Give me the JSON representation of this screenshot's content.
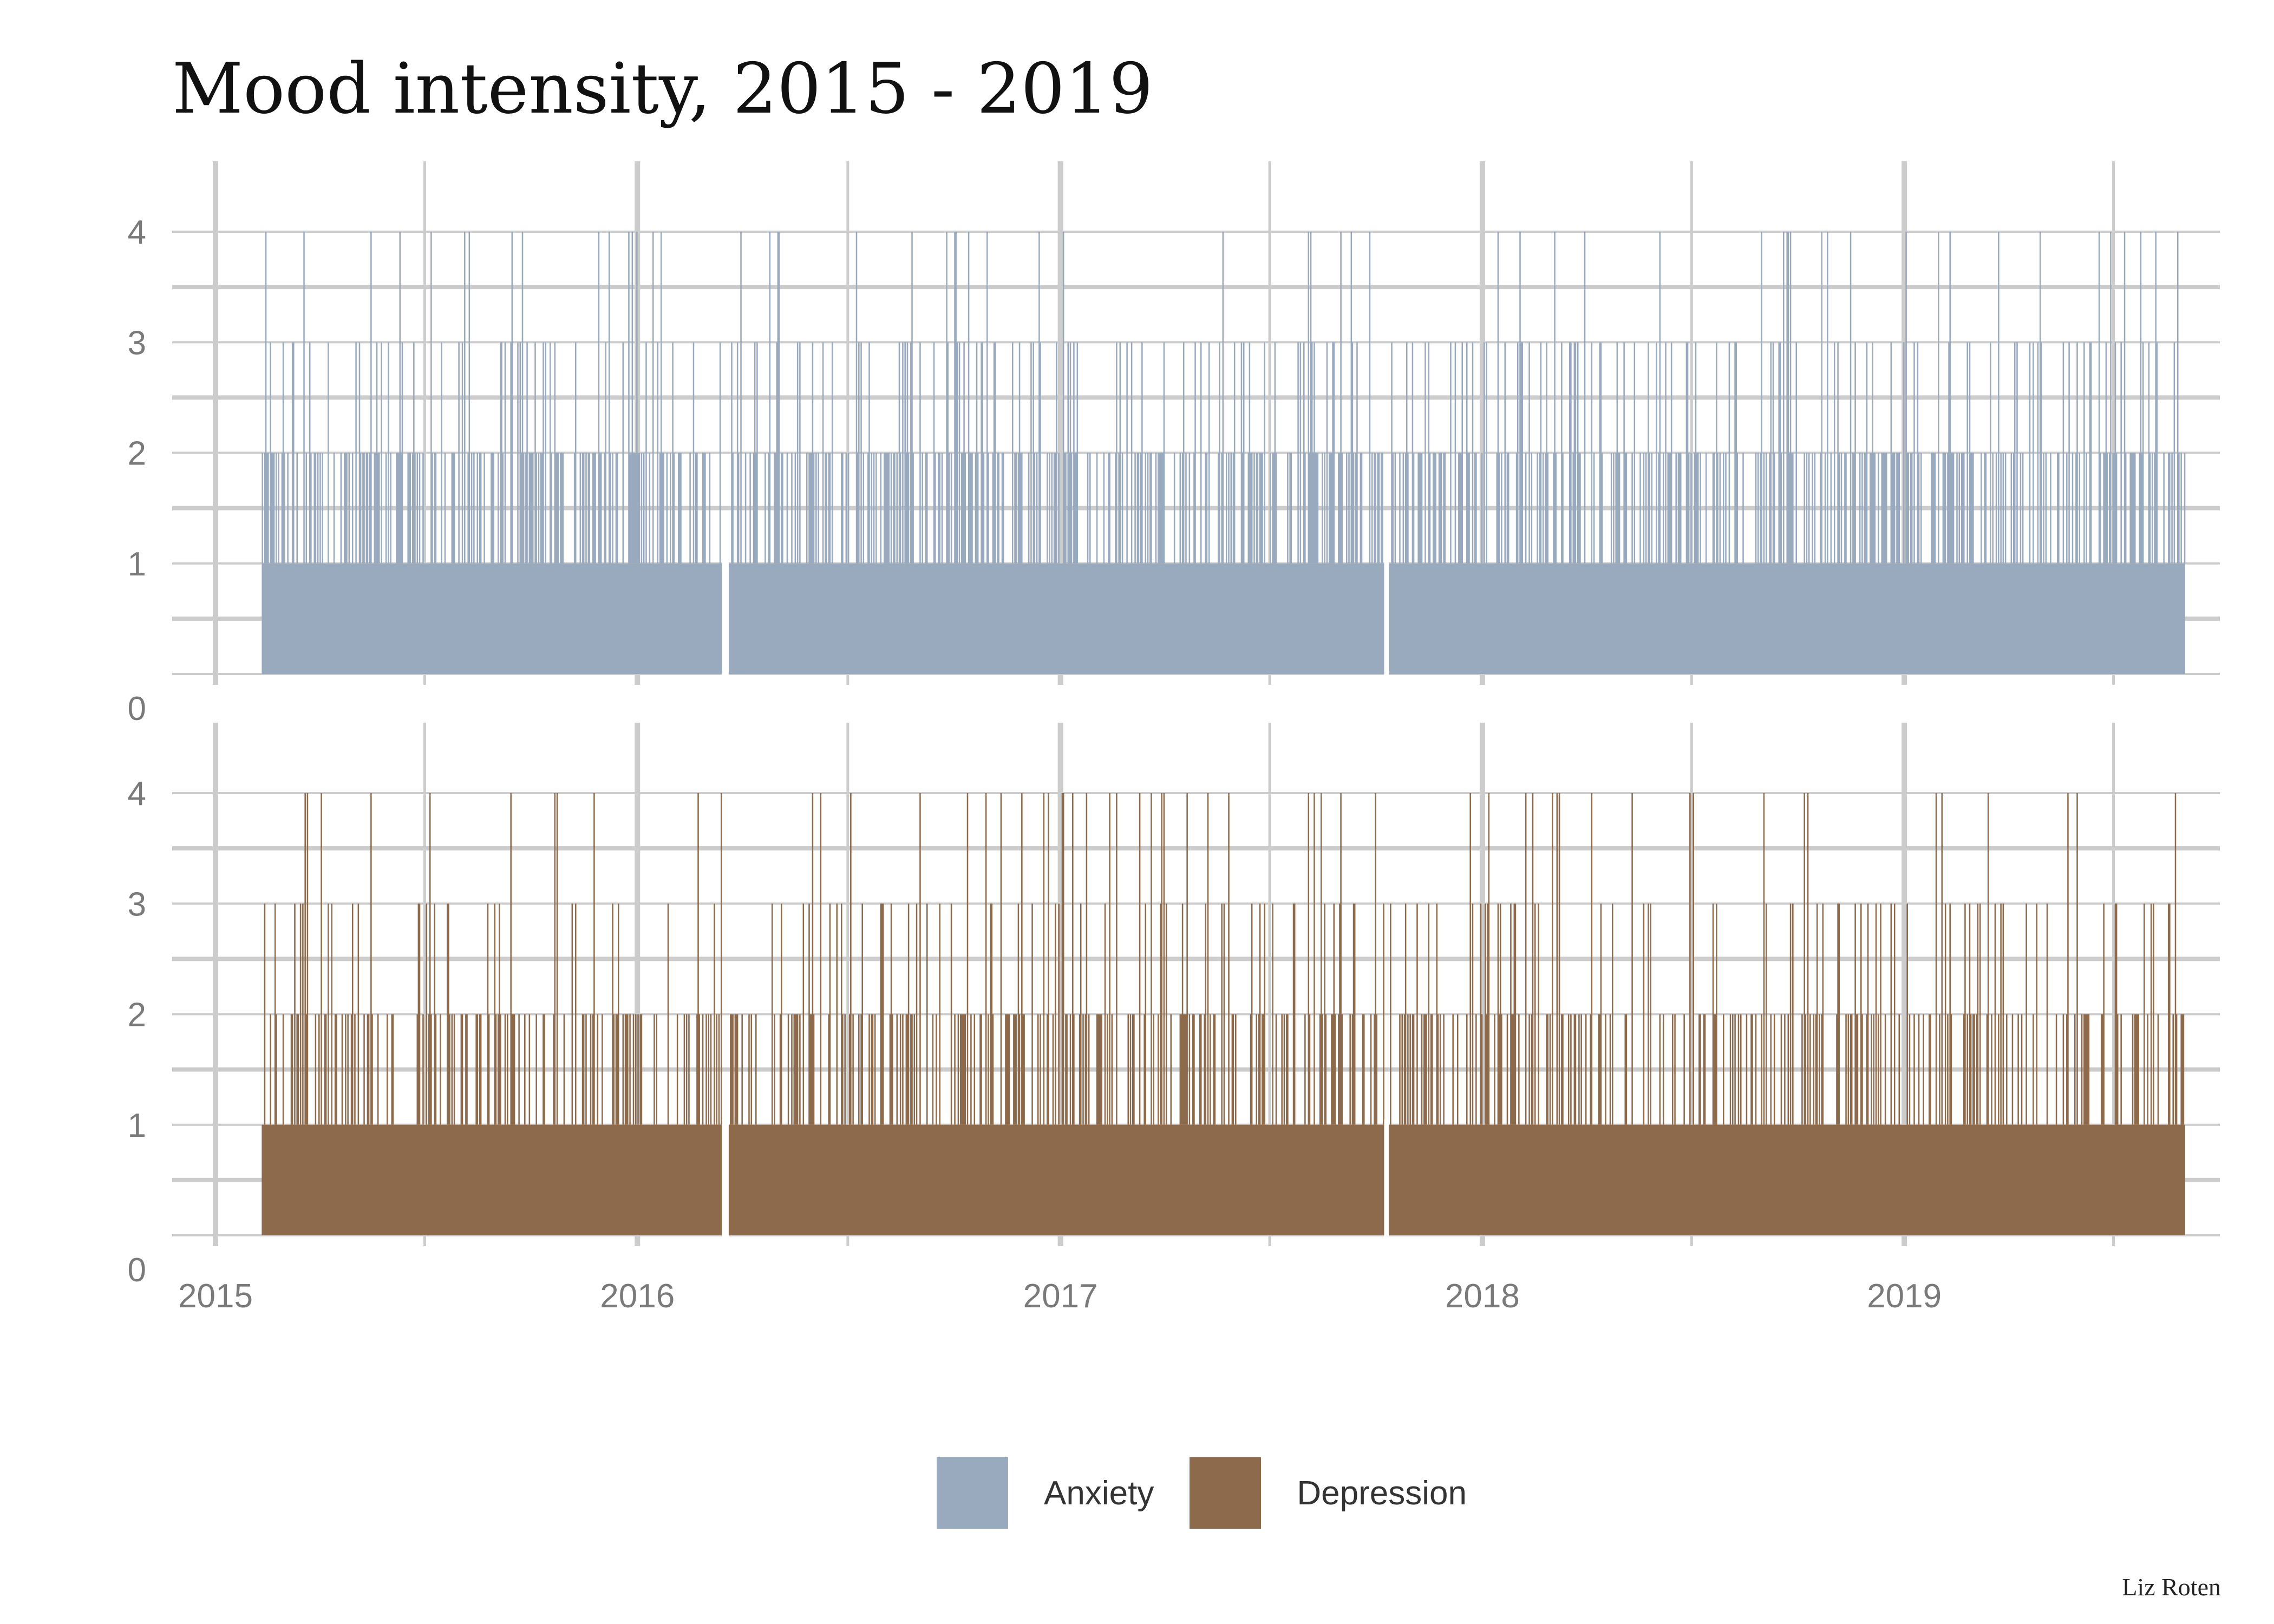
{
  "title": "Mood intensity, 2015 - 2019",
  "credit": "Liz Roten",
  "chart_data": {
    "type": "bar",
    "x_axis": {
      "type": "date",
      "range": [
        "2015-01-01",
        "2019-10-01"
      ],
      "ticks": [
        "2015",
        "2016",
        "2017",
        "2018",
        "2019"
      ]
    },
    "y_axis": {
      "range": [
        0,
        4
      ],
      "ticks": [
        "0",
        "1",
        "2",
        "3",
        "4"
      ]
    },
    "data_start": "2015-02-10",
    "data_end": "2019-09-01",
    "gaps": [
      [
        "2016-03-14",
        "2016-03-20"
      ],
      [
        "2017-10-08",
        "2017-10-12"
      ]
    ],
    "grid": true,
    "legend": {
      "position": "bottom"
    },
    "panels": [
      {
        "series": "Anxiety",
        "color": "#9aaabe",
        "daily_level_mix": {
          "1": 0.55,
          "2": 0.3,
          "3": 0.11,
          "4": 0.04
        }
      },
      {
        "series": "Depression",
        "color": "#8c6a4b",
        "daily_level_mix": {
          "1": 0.66,
          "2": 0.23,
          "3": 0.07,
          "4": 0.03
        }
      }
    ]
  },
  "legend_items": [
    {
      "label": "Anxiety",
      "color": "#9aaabe"
    },
    {
      "label": "Depression",
      "color": "#8c6a4b"
    }
  ]
}
